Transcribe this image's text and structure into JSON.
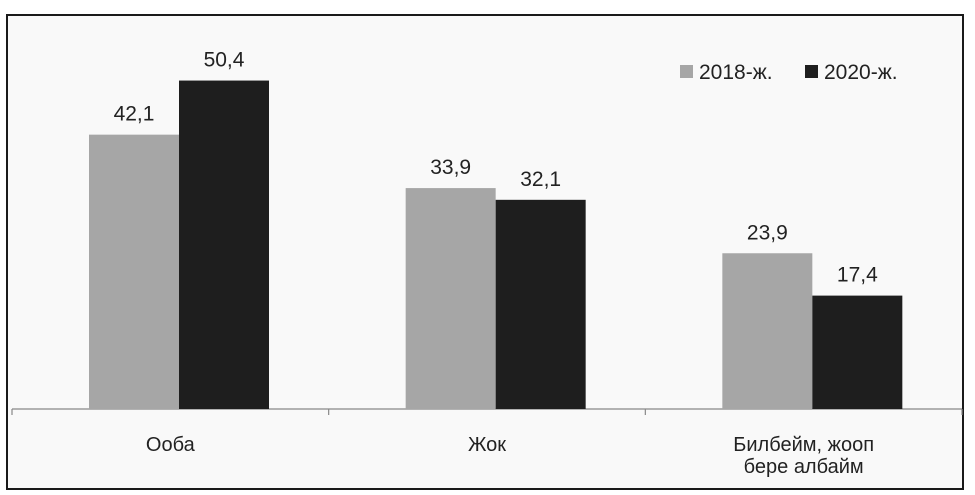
{
  "chart_data": {
    "type": "bar",
    "categories": [
      [
        "Ооба"
      ],
      [
        "Жок"
      ],
      [
        "Билбейм, жооп",
        "бере албайм"
      ]
    ],
    "series": [
      {
        "name": "2018-ж.",
        "values": [
          42.1,
          33.9,
          23.9
        ],
        "labels": [
          "42,1",
          "33,9",
          "23,9"
        ],
        "color": "#a6a6a6"
      },
      {
        "name": "2020-ж.",
        "values": [
          50.4,
          32.1,
          17.4
        ],
        "labels": [
          "50,4",
          "32,1",
          "17,4"
        ],
        "color": "#1e1e1e"
      }
    ],
    "ylim": [
      0,
      60
    ],
    "grid": false,
    "legend": "top-right"
  }
}
